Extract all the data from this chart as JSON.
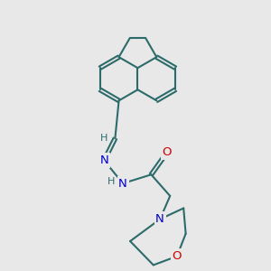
{
  "bg_color": "#e8e8e8",
  "bond_color": "#2d6b6b",
  "bond_width": 1.5,
  "atom_colors": {
    "N": "#0000cc",
    "O": "#cc0000",
    "C": "#2d6b6b",
    "H": "#2d6b6b"
  },
  "font_size": 8.5
}
